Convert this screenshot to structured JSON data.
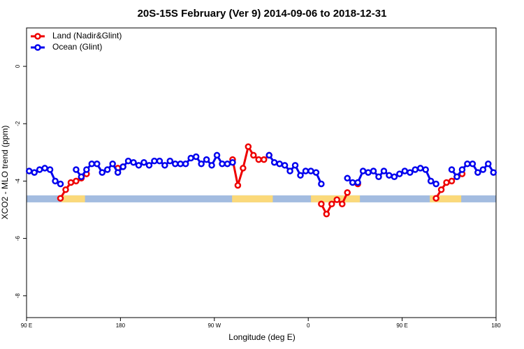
{
  "chart_data": {
    "type": "line",
    "title": "20S-15S February (Ver 9)   2014-09-06 to 2018-12-31",
    "xlabel": "Longitude (deg E)",
    "ylabel": "XCO2 - MLO trend (ppm)",
    "xlim": [
      90,
      540
    ],
    "ylim": [
      -8.76,
      1.34
    ],
    "xticks": [
      {
        "value": 90,
        "label": "90 E"
      },
      180,
      {
        "value": 270,
        "label": "90 W"
      },
      {
        "value": 360,
        "label": "0"
      },
      {
        "value": 450,
        "label": "90 E"
      },
      {
        "value": 540,
        "label": "180"
      }
    ],
    "yticks": [
      0,
      -2,
      -4,
      -6,
      -8
    ],
    "legend": "top-left",
    "mask": {
      "y": -4.62,
      "ocean_color": "#a3bce0",
      "land_color": "#fbd97a",
      "land_ranges": [
        [
          123.5,
          146
        ],
        [
          287,
          326
        ],
        [
          362.6,
          409.5
        ],
        [
          476.5,
          506.6
        ]
      ]
    },
    "x": [
      92.5,
      97.5,
      102.5,
      107.5,
      112.5,
      117.5,
      122.5,
      127.5,
      132.5,
      137.5,
      142.5,
      147.5,
      152.5,
      157.5,
      162.5,
      167.5,
      172.5,
      177.5,
      182.5,
      187.5,
      192.5,
      197.5,
      202.5,
      207.5,
      212.5,
      217.5,
      222.5,
      227.5,
      232.5,
      237.5,
      242.5,
      247.5,
      252.5,
      257.5,
      262.5,
      267.5,
      272.5,
      277.5,
      282.5,
      287.5,
      292.5,
      297.5,
      302.5,
      307.5,
      312.5,
      317.5,
      322.5,
      327.5,
      332.5,
      337.5,
      342.5,
      347.5,
      352.5,
      357.5,
      362.5,
      367.5,
      372.5,
      377.5,
      382.5,
      387.5,
      392.5,
      397.5,
      402.5,
      407.5,
      412.5,
      417.5,
      422.5,
      427.5,
      432.5,
      437.5,
      442.5,
      447.5,
      452.5,
      457.5,
      462.5,
      467.5,
      472.5,
      477.5,
      482.5,
      487.5,
      492.5,
      497.5,
      502.5,
      507.5,
      512.5,
      517.5,
      522.5,
      527.5,
      532.5,
      537.5
    ],
    "series": [
      {
        "name": "Land (Nadir&Glint)",
        "color": "#ee0000",
        "values": [
          null,
          null,
          null,
          null,
          null,
          null,
          -4.6,
          -4.3,
          -4.05,
          -4.0,
          -3.9,
          -3.75,
          null,
          null,
          null,
          null,
          null,
          -3.55,
          -3.5,
          null,
          null,
          null,
          null,
          null,
          null,
          null,
          null,
          null,
          null,
          null,
          null,
          null,
          null,
          null,
          null,
          null,
          null,
          null,
          null,
          -3.25,
          -4.15,
          -3.55,
          -2.8,
          -3.1,
          -3.25,
          -3.25,
          -3.1,
          null,
          null,
          null,
          null,
          null,
          null,
          null,
          null,
          null,
          -4.8,
          -5.15,
          -4.8,
          -4.65,
          -4.8,
          -4.4,
          null,
          -4.1,
          null,
          null,
          null,
          null,
          null,
          null,
          null,
          null,
          null,
          null,
          null,
          null,
          null,
          null,
          -4.6,
          -4.3,
          -4.05,
          -4.0,
          -3.85,
          -3.75,
          null,
          null,
          null,
          null,
          null,
          null
        ]
      },
      {
        "name": "Ocean (Glint)",
        "color": "#0000ee",
        "values": [
          -3.65,
          -3.7,
          -3.6,
          -3.55,
          -3.6,
          -4.0,
          -4.1,
          null,
          null,
          -3.6,
          -3.85,
          -3.6,
          -3.4,
          -3.4,
          -3.7,
          -3.6,
          -3.4,
          -3.7,
          -3.5,
          -3.3,
          -3.35,
          -3.45,
          -3.35,
          -3.45,
          -3.3,
          -3.3,
          -3.45,
          -3.3,
          -3.4,
          -3.4,
          -3.4,
          -3.2,
          -3.15,
          -3.4,
          -3.25,
          -3.45,
          -3.1,
          -3.4,
          -3.4,
          -3.35,
          null,
          null,
          null,
          null,
          null,
          null,
          -3.1,
          -3.35,
          -3.4,
          -3.45,
          -3.65,
          -3.45,
          -3.8,
          -3.65,
          -3.65,
          -3.7,
          -4.1,
          null,
          null,
          null,
          null,
          -3.9,
          -4.05,
          -4.05,
          -3.65,
          -3.7,
          -3.65,
          -3.85,
          -3.65,
          -3.8,
          -3.85,
          -3.75,
          -3.65,
          -3.7,
          -3.6,
          -3.55,
          -3.6,
          -4.0,
          -4.1,
          null,
          null,
          -3.6,
          -3.85,
          -3.6,
          -3.4,
          -3.4,
          -3.7,
          -3.6,
          -3.4,
          -3.7
        ]
      }
    ]
  }
}
